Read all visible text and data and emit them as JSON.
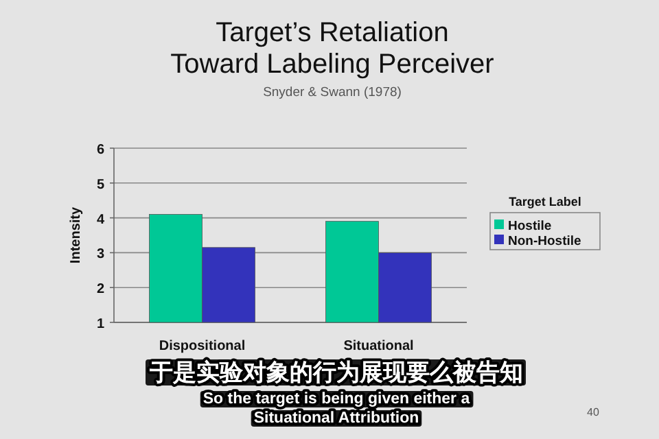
{
  "chart_data": {
    "type": "bar",
    "title": "Target’s Retaliation\nToward Labeling Perceiver",
    "subtitle": "Snyder & Swann (1978)",
    "ylabel": "Intensity",
    "legend_title": "Target Label",
    "categories": [
      "Dispositional",
      "Situational"
    ],
    "series": [
      {
        "name": "Hostile",
        "color": "#00c896",
        "values": [
          4.1,
          3.9
        ]
      },
      {
        "name": "Non-Hostile",
        "color": "#3333bb",
        "values": [
          3.15,
          3.0
        ]
      }
    ],
    "ylim": [
      1,
      6
    ],
    "yticks": [
      1,
      2,
      3,
      4,
      5,
      6
    ],
    "grid": "y",
    "legend": "right",
    "annotations": [
      "于是实验对象的行为展现要么被告知",
      "So the target is being given either a\nSituational Attribution",
      "40"
    ]
  }
}
